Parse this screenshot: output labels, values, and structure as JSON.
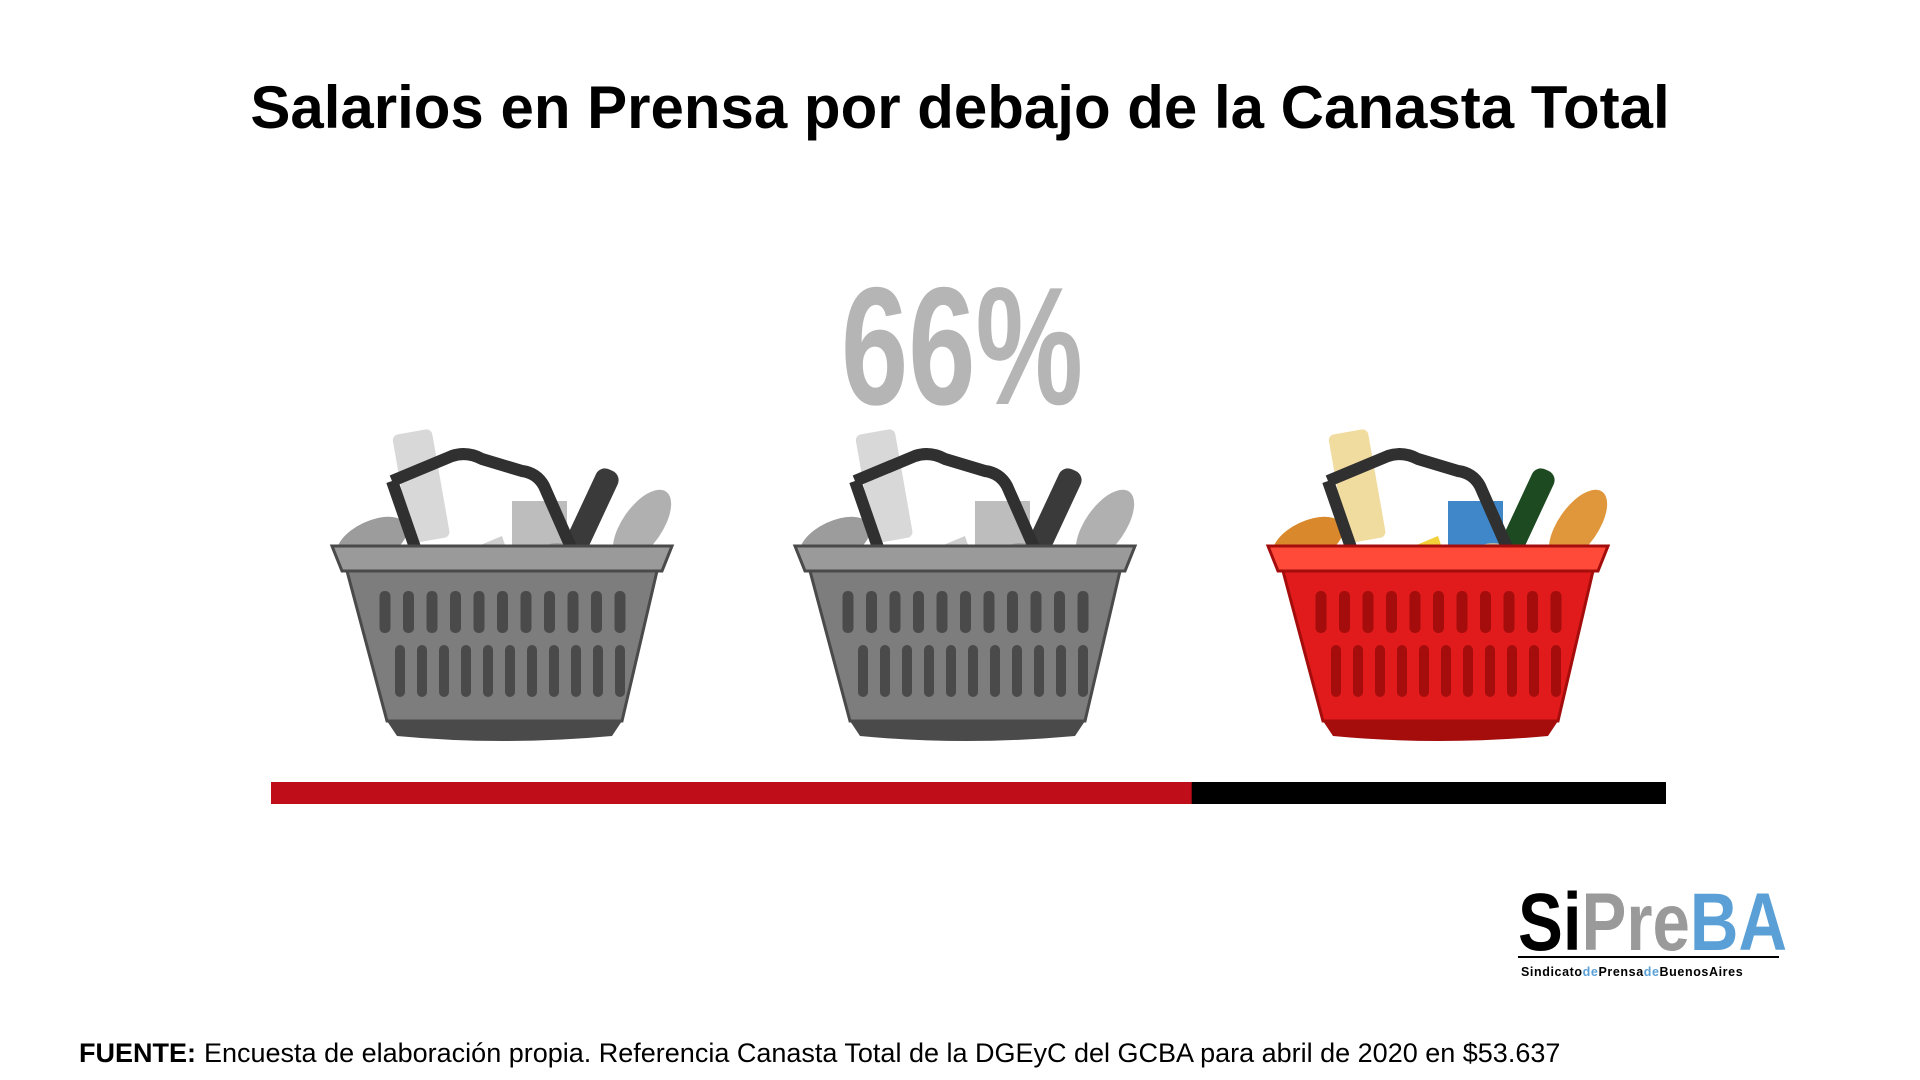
{
  "chart_data": {
    "type": "progress",
    "title": "Salarios en Prensa por debajo de la Canasta Total",
    "value": 66,
    "value_label": "66%",
    "xlim": [
      0,
      100
    ],
    "color": "#c00d1a",
    "track_color": "#000000"
  },
  "logo": {
    "parts": [
      "Si",
      "Pre",
      "BA"
    ],
    "tagline": [
      "Sindicato",
      "de",
      "Prensa",
      "de",
      "BuenosAires"
    ]
  },
  "source": {
    "label": "FUENTE:",
    "text": "Encuesta de elaboración propia. Referencia Canasta Total de la DGEyC del GCBA para abril de 2020 en $53.637"
  }
}
